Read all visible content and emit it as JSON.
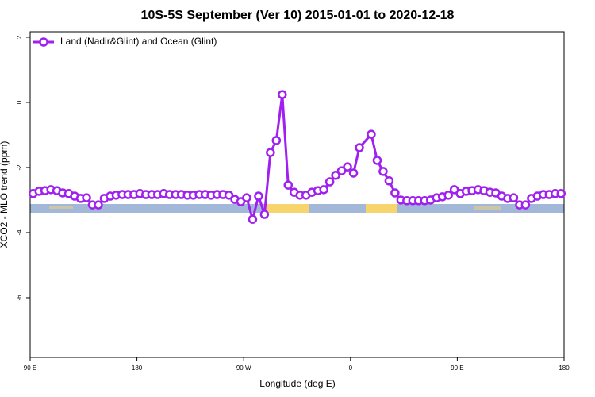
{
  "chart_data": {
    "type": "line",
    "title": "10S-5S September (Ver 10)   2015-01-01 to 2020-12-18",
    "x_label": "Longitude (deg E)",
    "y_label": "XCO2 - MLO trend (ppm)",
    "xlim": [
      90,
      540
    ],
    "ylim": [
      -7.83,
      2.17
    ],
    "xticks": [
      {
        "value": 90,
        "label": "90 E"
      },
      180,
      {
        "value": 270,
        "label": "90 W"
      },
      {
        "value": 360,
        "label": "0"
      },
      {
        "value": 450,
        "label": "90 E"
      },
      {
        "value": 540,
        "label": "180"
      }
    ],
    "yticks": [
      2,
      0,
      -2,
      -4,
      -6
    ],
    "legend": "top-left",
    "x": [
      92.5,
      97.5,
      102.5,
      107.5,
      112.5,
      117.5,
      122.5,
      127.5,
      132.5,
      137.5,
      142.5,
      147.5,
      152.5,
      157.5,
      162.5,
      167.5,
      172.5,
      177.5,
      182.5,
      187.5,
      192.5,
      197.5,
      202.5,
      207.5,
      212.5,
      217.5,
      222.5,
      227.5,
      232.5,
      237.5,
      242.5,
      247.5,
      252.5,
      257.5,
      262.5,
      267.5,
      272.5,
      277.5,
      282.5,
      287.5,
      292.5,
      297.5,
      302.5,
      307.5,
      312.5,
      317.5,
      322.5,
      327.5,
      332.5,
      337.5,
      342.5,
      347.5,
      352.5,
      357.5,
      362.5,
      367.5,
      377.5,
      382.5,
      387.5,
      392.5,
      397.5,
      402.5,
      407.5,
      412.5,
      417.5,
      422.5,
      427.5,
      432.5,
      437.5,
      442.5,
      447.5,
      452.5,
      457.5,
      462.5,
      467.5,
      472.5,
      477.5,
      482.5,
      487.5,
      492.5,
      497.5,
      502.5,
      507.5,
      512.5,
      517.5,
      522.5,
      527.5,
      532.5,
      537.5
    ],
    "series": [
      {
        "name": "Land (Nadir&Glint) and Ocean (Glint)",
        "color": "#a020f0",
        "values": [
          -2.8,
          -2.73,
          -2.71,
          -2.68,
          -2.71,
          -2.78,
          -2.8,
          -2.88,
          -2.95,
          -2.93,
          -3.15,
          -3.15,
          -2.95,
          -2.88,
          -2.85,
          -2.83,
          -2.83,
          -2.83,
          -2.8,
          -2.83,
          -2.83,
          -2.83,
          -2.8,
          -2.83,
          -2.83,
          -2.83,
          -2.85,
          -2.85,
          -2.83,
          -2.83,
          -2.85,
          -2.83,
          -2.83,
          -2.85,
          -2.98,
          -3.05,
          -2.93,
          -3.59,
          -2.88,
          -3.44,
          -1.54,
          -1.17,
          0.24,
          -2.54,
          -2.76,
          -2.85,
          -2.85,
          -2.76,
          -2.71,
          -2.68,
          -2.44,
          -2.24,
          -2.1,
          -1.98,
          -2.17,
          -1.39,
          -0.98,
          -1.78,
          -2.12,
          -2.41,
          -2.78,
          -3.0,
          -3.02,
          -3.02,
          -3.02,
          -3.02,
          -3.0,
          -2.93,
          -2.9,
          -2.85,
          -2.68,
          -2.8,
          -2.73,
          -2.71,
          -2.68,
          -2.71,
          -2.76,
          -2.78,
          -2.88,
          -2.95,
          -2.93,
          -3.15,
          -3.15,
          -2.95,
          -2.88,
          -2.83,
          -2.83,
          -2.8,
          -2.8
        ]
      }
    ]
  }
}
